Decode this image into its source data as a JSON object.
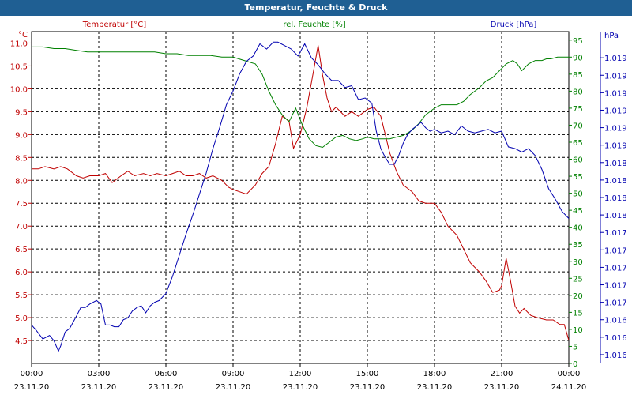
{
  "window": {
    "title": "Temperatur, Feuchte & Druck"
  },
  "chart_data": {
    "type": "line",
    "title": "Temperatur, Feuchte & Druck",
    "colors": {
      "temperature": "#c00000",
      "humidity": "#008000",
      "pressure": "#0000b0",
      "grid": "#000000",
      "axis_text": "#000000"
    },
    "x_range": [
      0,
      24
    ],
    "x_ticks": [
      {
        "time": "00:00",
        "date": "23.11.20",
        "h": 0
      },
      {
        "time": "03:00",
        "date": "23.11.20",
        "h": 3
      },
      {
        "time": "06:00",
        "date": "23.11.20",
        "h": 6
      },
      {
        "time": "09:00",
        "date": "23.11.20",
        "h": 9
      },
      {
        "time": "12:00",
        "date": "23.11.20",
        "h": 12
      },
      {
        "time": "15:00",
        "date": "23.11.20",
        "h": 15
      },
      {
        "time": "18:00",
        "date": "23.11.20",
        "h": 18
      },
      {
        "time": "21:00",
        "date": "23.11.20",
        "h": 21
      },
      {
        "time": "00:00",
        "date": "24.11.20",
        "h": 24
      }
    ],
    "axes": {
      "temperature": {
        "label": "Temperatur [°C]",
        "unit": "°C",
        "range": [
          4.0,
          11.25
        ],
        "ticks": [
          "4.5",
          "5.0",
          "5.5",
          "6.0",
          "6.5",
          "7.0",
          "7.5",
          "8.0",
          "8.5",
          "9.0",
          "9.5",
          "10.0",
          "10.5",
          "11.0"
        ]
      },
      "humidity": {
        "label": "rel. Feuchte [%]",
        "unit": "%",
        "range": [
          0,
          97.5
        ],
        "ticks": [
          "0",
          "5",
          "10",
          "15",
          "20",
          "25",
          "30",
          "35",
          "40",
          "45",
          "50",
          "55",
          "60",
          "65",
          "70",
          "75",
          "80",
          "85",
          "90",
          "95"
        ]
      },
      "pressure": {
        "label": "Druck [hPa]",
        "unit": "hPa",
        "range": [
          0,
          19
        ],
        "ticks": [
          "1.016",
          "1.016",
          "1.016",
          "1.017",
          "1.017",
          "1.017",
          "1.017",
          "1.017",
          "1.018",
          "1.018",
          "1.018",
          "1.018",
          "1.019",
          "1.019",
          "1.019",
          "1.019",
          "1.019",
          "1.019"
        ],
        "tick_positions": [
          0.5,
          1.5,
          2.5,
          3.5,
          4.5,
          5.5,
          6.5,
          7.5,
          8.5,
          9.5,
          10.5,
          11.5,
          12.5,
          13.5,
          14.5,
          15.5,
          16.5,
          17.5
        ]
      }
    },
    "series": [
      {
        "name": "Temperatur",
        "axis": "temperature",
        "color": "#c00000",
        "x": [
          0,
          0.3,
          0.6,
          1,
          1.3,
          1.6,
          2,
          2.3,
          2.6,
          3,
          3.3,
          3.6,
          4,
          4.3,
          4.6,
          5,
          5.3,
          5.6,
          6,
          6.3,
          6.6,
          6.9,
          7.2,
          7.5,
          7.8,
          8.1,
          8.5,
          8.8,
          9,
          9.3,
          9.6,
          10,
          10.3,
          10.6,
          10.9,
          11.2,
          11.5,
          11.7,
          12,
          12.3,
          12.6,
          12.8,
          13,
          13.2,
          13.4,
          13.6,
          13.8,
          14,
          14.3,
          14.6,
          15,
          15.3,
          15.6,
          15.8,
          16,
          16.3,
          16.6,
          17,
          17.3,
          17.6,
          18,
          18.3,
          18.6,
          19,
          19.3,
          19.6,
          20,
          20.3,
          20.6,
          20.9,
          21,
          21.2,
          21.4,
          21.6,
          21.8,
          22,
          22.3,
          22.6,
          23,
          23.3,
          23.6,
          23.8,
          24
        ],
        "values": [
          8.25,
          8.25,
          8.3,
          8.25,
          8.3,
          8.25,
          8.1,
          8.05,
          8.1,
          8.1,
          8.15,
          7.95,
          8.1,
          8.2,
          8.1,
          8.15,
          8.1,
          8.15,
          8.1,
          8.15,
          8.2,
          8.1,
          8.1,
          8.15,
          8.05,
          8.1,
          8.0,
          7.85,
          7.8,
          7.75,
          7.7,
          7.9,
          8.15,
          8.3,
          8.8,
          9.4,
          9.3,
          8.7,
          9.0,
          9.6,
          10.4,
          10.95,
          10.3,
          9.8,
          9.5,
          9.6,
          9.5,
          9.4,
          9.5,
          9.4,
          9.55,
          9.6,
          9.4,
          9.0,
          8.6,
          8.2,
          7.9,
          7.75,
          7.55,
          7.5,
          7.5,
          7.3,
          7.0,
          6.8,
          6.5,
          6.2,
          6.0,
          5.8,
          5.55,
          5.6,
          5.7,
          6.3,
          5.8,
          5.25,
          5.1,
          5.2,
          5.05,
          5.0,
          4.95,
          4.95,
          4.85,
          4.85,
          4.5
        ]
      },
      {
        "name": "rel. Feuchte",
        "axis": "humidity",
        "color": "#008000",
        "x": [
          0,
          0.5,
          1,
          1.5,
          2,
          2.5,
          3,
          3.5,
          4,
          4.5,
          5,
          5.5,
          6,
          6.5,
          7,
          7.5,
          8,
          8.5,
          9,
          9.5,
          10,
          10.3,
          10.6,
          10.9,
          11.2,
          11.5,
          11.8,
          12.1,
          12.4,
          12.7,
          13,
          13.3,
          13.6,
          13.9,
          14.2,
          14.5,
          14.8,
          15,
          15.3,
          15.6,
          16,
          16.3,
          16.6,
          17,
          17.3,
          17.6,
          18,
          18.3,
          18.6,
          19,
          19.3,
          19.6,
          20,
          20.3,
          20.6,
          20.9,
          21.2,
          21.5,
          21.7,
          21.9,
          22.2,
          22.5,
          22.8,
          23,
          23.2,
          23.5,
          23.8,
          24
        ],
        "values": [
          93,
          93,
          92.5,
          92.5,
          92,
          91.5,
          91.5,
          91.5,
          91.5,
          91.5,
          91.5,
          91.5,
          91,
          91,
          90.5,
          90.5,
          90.5,
          90,
          90,
          89,
          88,
          85,
          80,
          76,
          73,
          71,
          75,
          70,
          66,
          64,
          63.5,
          65,
          66.5,
          67,
          66,
          65.5,
          66,
          66.5,
          66,
          66,
          66,
          66.5,
          67,
          68.5,
          70.5,
          73,
          75,
          76,
          76,
          76,
          77,
          79,
          81,
          83,
          84,
          86,
          88,
          89,
          88,
          86,
          88,
          89,
          89,
          89.5,
          89.5,
          90,
          90,
          90
        ]
      },
      {
        "name": "Druck",
        "axis": "pressure",
        "color": "#0000b0",
        "x": [
          0,
          0.2,
          0.5,
          0.8,
          1,
          1.2,
          1.3,
          1.5,
          1.7,
          2,
          2.2,
          2.4,
          2.6,
          2.9,
          3.1,
          3.3,
          3.5,
          3.7,
          3.9,
          4.1,
          4.3,
          4.5,
          4.7,
          4.9,
          5.1,
          5.3,
          5.5,
          5.7,
          6,
          6.3,
          6.6,
          6.9,
          7.2,
          7.5,
          7.8,
          8.1,
          8.4,
          8.7,
          9,
          9.3,
          9.6,
          9.9,
          10.2,
          10.5,
          10.8,
          11,
          11.3,
          11.6,
          11.9,
          12.2,
          12.5,
          12.8,
          13.1,
          13.4,
          13.7,
          14,
          14.3,
          14.6,
          14.9,
          15.2,
          15.4,
          15.6,
          15.8,
          16,
          16.2,
          16.4,
          16.6,
          16.8,
          17,
          17.2,
          17.4,
          17.6,
          17.8,
          18,
          18.3,
          18.6,
          18.9,
          19.2,
          19.5,
          19.8,
          20.1,
          20.4,
          20.7,
          21,
          21.3,
          21.6,
          21.9,
          22.2,
          22.5,
          22.8,
          23.1,
          23.4,
          23.7,
          24
        ],
        "values": [
          2.2,
          1.9,
          1.4,
          1.6,
          1.3,
          0.7,
          1.0,
          1.8,
          2.0,
          2.7,
          3.2,
          3.2,
          3.4,
          3.6,
          3.4,
          2.2,
          2.2,
          2.1,
          2.1,
          2.5,
          2.6,
          3.0,
          3.2,
          3.3,
          2.9,
          3.3,
          3.5,
          3.6,
          4.0,
          5.0,
          6.2,
          7.4,
          8.5,
          9.7,
          10.9,
          12.3,
          13.5,
          14.8,
          15.6,
          16.6,
          17.3,
          17.6,
          18.3,
          18.0,
          18.4,
          18.4,
          18.2,
          18.0,
          17.6,
          18.3,
          17.5,
          17.1,
          16.6,
          16.2,
          16.2,
          15.8,
          15.9,
          15.1,
          15.2,
          14.9,
          13.3,
          12.3,
          11.8,
          11.4,
          11.4,
          11.9,
          12.6,
          13.1,
          13.4,
          13.6,
          13.8,
          13.5,
          13.3,
          13.4,
          13.2,
          13.3,
          13.1,
          13.6,
          13.3,
          13.2,
          13.3,
          13.4,
          13.2,
          13.3,
          12.4,
          12.3,
          12.1,
          12.3,
          11.9,
          11.1,
          10.0,
          9.4,
          8.7,
          8.3
        ]
      }
    ]
  }
}
